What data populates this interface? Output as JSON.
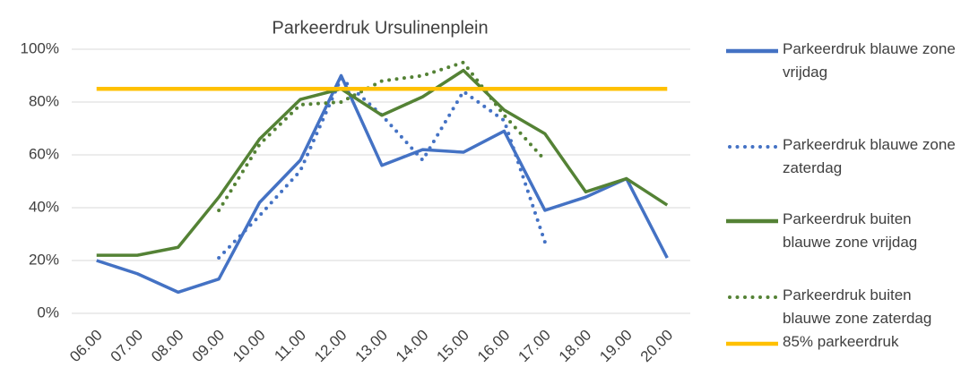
{
  "chart_data": {
    "type": "line",
    "title": "Parkeerdruk Ursulinenplein",
    "categories": [
      "06.00",
      "07.00",
      "08.00",
      "09.00",
      "10.00",
      "11.00",
      "12.00",
      "13.00",
      "14.00",
      "15.00",
      "16.00",
      "17.00",
      "18.00",
      "19.00",
      "20.00"
    ],
    "series": [
      {
        "name": "Parkeerdruk blauwe zone vrijdag",
        "color": "#4472c4",
        "style": "solid",
        "values": [
          20,
          15,
          8,
          13,
          42,
          58,
          90,
          56,
          62,
          61,
          69,
          39,
          44,
          51,
          21
        ]
      },
      {
        "name": "Parkeerdruk blauwe zone zaterdag",
        "color": "#4472c4",
        "style": "dotted",
        "values": [
          null,
          null,
          null,
          21,
          37,
          54,
          89,
          75,
          58,
          84,
          73,
          27,
          null,
          null,
          null
        ]
      },
      {
        "name": "Parkeerdruk buiten blauwe zone vrijdag",
        "color": "#548235",
        "style": "solid",
        "values": [
          22,
          22,
          25,
          44,
          66,
          81,
          85,
          75,
          82,
          92,
          77,
          68,
          46,
          51,
          41
        ]
      },
      {
        "name": "Parkeerdruk buiten blauwe zone zaterdag",
        "color": "#548235",
        "style": "dotted",
        "values": [
          null,
          null,
          null,
          39,
          64,
          79,
          80,
          88,
          90,
          95,
          75,
          58,
          null,
          null,
          null
        ]
      },
      {
        "name": "85% parkeerdruk",
        "color": "#ffc000",
        "style": "solid",
        "values": [
          85,
          85,
          85,
          85,
          85,
          85,
          85,
          85,
          85,
          85,
          85,
          85,
          85,
          85,
          85
        ]
      }
    ],
    "ylim": [
      0,
      100
    ],
    "yticks": [
      {
        "value": 0,
        "label": "0%"
      },
      {
        "value": 20,
        "label": "20%"
      },
      {
        "value": 40,
        "label": "40%"
      },
      {
        "value": 60,
        "label": "60%"
      },
      {
        "value": 80,
        "label": "80%"
      },
      {
        "value": 100,
        "label": "100%"
      }
    ],
    "grid": true,
    "legend": "right"
  }
}
